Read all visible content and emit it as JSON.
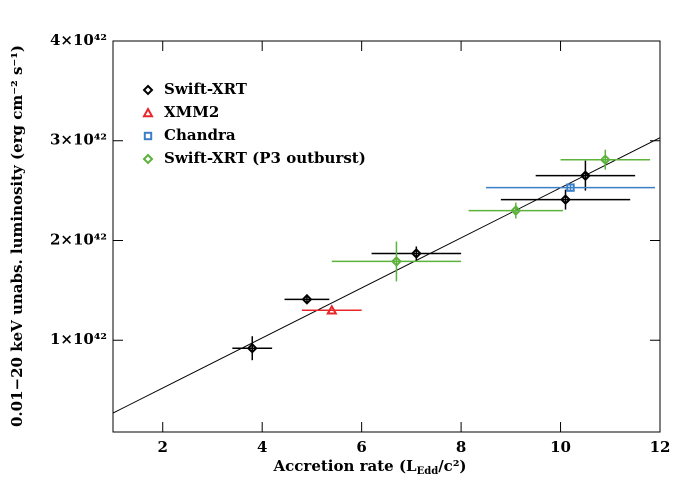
{
  "chart_data": {
    "type": "scatter",
    "xlabel": [
      "Accretion rate (L",
      "Edd",
      "/c²)"
    ],
    "ylabel": "0.01−20 keV unabs. luminosity (erg cm⁻² s⁻¹)",
    "xlim": [
      1,
      12
    ],
    "xticks": [
      2,
      4,
      6,
      8,
      10,
      12
    ],
    "ylim": [
      8e+40,
      4e+42
    ],
    "yticks": [
      {
        "value": 1e+42,
        "label": "1×10⁴²"
      },
      {
        "value": 2e+42,
        "label": "2×10⁴²"
      },
      {
        "value": 3e+42,
        "label": "3×10⁴²"
      },
      {
        "value": 4e+42,
        "label": "4×10⁴²"
      }
    ],
    "legend": "upper left",
    "series": [
      {
        "name": "Swift-XRT",
        "color": "#000000",
        "marker": "diamond",
        "x": [
          3.8,
          4.9,
          7.1,
          10.1,
          10.5
        ],
        "values": [
          9.2e+41,
          1.41e+42,
          1.87e+42,
          2.41e+42,
          2.65e+42
        ],
        "xerr": [
          0.4,
          0.45,
          0.9,
          1.3,
          1.0
        ],
        "yerr": [
          1.2e+41,
          3e+40,
          7e+40,
          1e+41,
          1.5e+41
        ]
      },
      {
        "name": "XMM2",
        "color": "#e8262a",
        "marker": "triangle",
        "x": [
          5.4
        ],
        "values": [
          1.3e+42
        ],
        "xerr": [
          0.6
        ],
        "yerr": [
          0
        ]
      },
      {
        "name": "Chandra",
        "color": "#3d7fc6",
        "marker": "square",
        "x": [
          10.2
        ],
        "values": [
          2.53e+42
        ],
        "xerr": [
          1.7
        ],
        "yerr": [
          3e+40
        ]
      },
      {
        "name": "Swift-XRT (P3 outburst)",
        "color": "#5cb23a",
        "marker": "diamond",
        "x": [
          6.7,
          9.1,
          10.9
        ],
        "values": [
          1.79e+42,
          2.3e+42,
          2.81e+42
        ],
        "xerr": [
          1.3,
          0.95,
          0.9
        ],
        "yerr": [
          2e+41,
          8e+40,
          1e+41
        ]
      }
    ],
    "fit_line": {
      "color": "#000000",
      "x": [
        1,
        12
      ],
      "values": [
        2.7e+41,
        3.03e+42
      ]
    }
  }
}
